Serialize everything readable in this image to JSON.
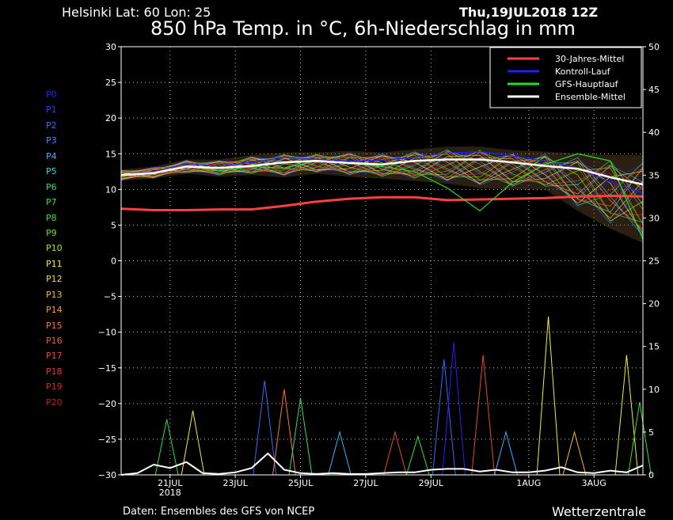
{
  "header": {
    "location": "Helsinki   Lat: 60  Lon: 25",
    "date": "Thu,19JUL2018 12Z",
    "title": "850 hPa Temp. in °C, 6h-Niederschlag in mm"
  },
  "footer": {
    "source": "Daten: Ensembles des GFS von NCEP",
    "brand": "Wetterzentrale"
  },
  "members": [
    {
      "name": "P0",
      "color": "#2020ff"
    },
    {
      "name": "P1",
      "color": "#2a3dff"
    },
    {
      "name": "P2",
      "color": "#2e6cff"
    },
    {
      "name": "P3",
      "color": "#2e8fff"
    },
    {
      "name": "P4",
      "color": "#35b3ff"
    },
    {
      "name": "P5",
      "color": "#3ad7e0"
    },
    {
      "name": "P6",
      "color": "#30d890"
    },
    {
      "name": "P7",
      "color": "#28e060"
    },
    {
      "name": "P8",
      "color": "#30e030"
    },
    {
      "name": "P9",
      "color": "#60e020"
    },
    {
      "name": "P10",
      "color": "#a0e820"
    },
    {
      "name": "P11",
      "color": "#f0f030"
    },
    {
      "name": "P12",
      "color": "#f8d830"
    },
    {
      "name": "P13",
      "color": "#f8b830"
    },
    {
      "name": "P14",
      "color": "#f89830"
    },
    {
      "name": "P15",
      "color": "#f87830"
    },
    {
      "name": "P16",
      "color": "#f06030"
    },
    {
      "name": "P17",
      "color": "#e84830"
    },
    {
      "name": "P18",
      "color": "#e03828"
    },
    {
      "name": "P19",
      "color": "#d82820"
    },
    {
      "name": "P20",
      "color": "#c81818"
    }
  ],
  "chart_data": {
    "type": "line",
    "x_ticks": [
      {
        "label": "21JUL",
        "sub": "2018",
        "x": 1.5
      },
      {
        "label": "23JUL",
        "sub": "",
        "x": 3.5
      },
      {
        "label": "25JUL",
        "sub": "",
        "x": 5.5
      },
      {
        "label": "27JUL",
        "sub": "",
        "x": 7.5
      },
      {
        "label": "29JUL",
        "sub": "",
        "x": 9.5
      },
      {
        "label": "1AUG",
        "sub": "",
        "x": 12.5
      },
      {
        "label": "3AUG",
        "sub": "",
        "x": 14.5
      }
    ],
    "xlim": [
      0,
      16
    ],
    "ylim_left": [
      -30,
      30
    ],
    "ylim_right": [
      0,
      50
    ],
    "y_ticks_left": [
      30,
      25,
      20,
      15,
      10,
      5,
      0,
      -5,
      -10,
      -15,
      -20,
      -25,
      -30
    ],
    "y_ticks_right": [
      50,
      45,
      40,
      35,
      30,
      25,
      20,
      15,
      10,
      5,
      0
    ],
    "grid": true,
    "legend_position": "top-right",
    "legend": [
      {
        "name": "30-Jahres-Mittel",
        "color": "#ff4040"
      },
      {
        "name": "Kontroll-Lauf",
        "color": "#2020ff"
      },
      {
        "name": "GFS-Hauptlauf",
        "color": "#20e020"
      },
      {
        "name": "Ensemble-Mittel",
        "color": "#ffffff"
      }
    ],
    "climate_mean": {
      "x": [
        0,
        1,
        2,
        3,
        4,
        5,
        6,
        7,
        8,
        9,
        10,
        11,
        12,
        13,
        14,
        15,
        16
      ],
      "y": [
        7.3,
        7.1,
        7.1,
        7.2,
        7.2,
        7.7,
        8.3,
        8.7,
        8.9,
        8.9,
        8.5,
        8.6,
        8.7,
        8.8,
        9.0,
        9.1,
        9.0
      ]
    },
    "ensemble_mean": {
      "x": [
        0,
        1,
        2,
        3,
        4,
        5,
        6,
        7,
        8,
        9,
        10,
        11,
        12,
        13,
        14,
        15,
        16
      ],
      "y": [
        12.0,
        12.3,
        13.2,
        13.0,
        13.3,
        13.8,
        14.0,
        13.7,
        13.5,
        14.0,
        14.2,
        14.2,
        13.8,
        13.3,
        12.9,
        11.7,
        10.7
      ]
    },
    "control_run": {
      "x": [
        0,
        1,
        2,
        3,
        4,
        5,
        6,
        7,
        8,
        9,
        10,
        11,
        12,
        13,
        14,
        15,
        16
      ],
      "y": [
        12.0,
        12.5,
        13.6,
        13.3,
        13.8,
        14.5,
        14.2,
        14.0,
        14.1,
        14.5,
        15.1,
        15.3,
        14.7,
        14.0,
        13.0,
        11.0,
        9.5
      ]
    },
    "gfs_main": {
      "x": [
        0,
        1,
        2,
        3,
        4,
        5,
        6,
        7,
        8,
        9,
        10,
        11,
        12,
        13,
        14,
        15,
        16
      ],
      "y": [
        12.0,
        12.2,
        13.3,
        12.6,
        13.2,
        13.0,
        14.0,
        13.7,
        13.2,
        12.5,
        10.2,
        7.0,
        11.0,
        13.5,
        15.0,
        14.0,
        3.0
      ]
    },
    "ensemble_band": {
      "x": [
        0,
        1,
        2,
        3,
        4,
        5,
        6,
        7,
        8,
        9,
        10,
        11,
        12,
        13,
        14,
        15,
        16
      ],
      "min": [
        11.2,
        11.5,
        12.2,
        11.8,
        12.0,
        11.7,
        12.2,
        11.8,
        11.5,
        11.2,
        10.8,
        10.2,
        10.0,
        10.0,
        7.0,
        4.5,
        2.5
      ],
      "max": [
        12.8,
        13.2,
        14.2,
        14.2,
        14.8,
        15.2,
        15.2,
        15.4,
        15.2,
        15.6,
        16.0,
        16.0,
        15.5,
        15.3,
        15.0,
        14.8,
        14.8
      ]
    },
    "precip_mean": {
      "x": [
        0,
        0.5,
        1,
        1.5,
        2,
        2.5,
        3,
        3.5,
        4,
        4.5,
        5,
        5.5,
        6,
        6.5,
        7,
        7.5,
        8,
        8.5,
        9,
        9.5,
        10,
        10.5,
        11,
        11.5,
        12,
        12.5,
        13,
        13.5,
        14,
        14.5,
        15,
        15.5,
        16
      ],
      "y": [
        0,
        0.2,
        1.2,
        0.8,
        1.5,
        0.2,
        0.1,
        0.3,
        0.8,
        2.5,
        0.6,
        0.2,
        0.1,
        0.2,
        0.1,
        0.1,
        0.2,
        0.3,
        0.3,
        0.6,
        0.7,
        0.7,
        0.4,
        0.6,
        0.3,
        0.3,
        0.5,
        0.9,
        0.3,
        0.2,
        0.5,
        0.3,
        1.1
      ]
    },
    "precip_peaks": [
      {
        "x": 1.4,
        "y": 6.5,
        "color": "#30e030"
      },
      {
        "x": 2.2,
        "y": 7.5,
        "color": "#f0f030"
      },
      {
        "x": 4.4,
        "y": 11.0,
        "color": "#2e6cff"
      },
      {
        "x": 5.0,
        "y": 10.0,
        "color": "#f87830"
      },
      {
        "x": 5.5,
        "y": 9.0,
        "color": "#28e060"
      },
      {
        "x": 6.7,
        "y": 5.0,
        "color": "#35b3ff"
      },
      {
        "x": 8.4,
        "y": 5.0,
        "color": "#e84830"
      },
      {
        "x": 9.1,
        "y": 4.5,
        "color": "#30e030"
      },
      {
        "x": 9.9,
        "y": 13.5,
        "color": "#2e6cff"
      },
      {
        "x": 10.2,
        "y": 15.5,
        "color": "#2020ff"
      },
      {
        "x": 11.1,
        "y": 14.0,
        "color": "#e84830"
      },
      {
        "x": 11.8,
        "y": 5.0,
        "color": "#35b3ff"
      },
      {
        "x": 13.1,
        "y": 18.5,
        "color": "#f0f030"
      },
      {
        "x": 13.9,
        "y": 5.0,
        "color": "#f8b830"
      },
      {
        "x": 15.5,
        "y": 14.0,
        "color": "#f0f030"
      },
      {
        "x": 15.9,
        "y": 8.5,
        "color": "#30e030"
      }
    ]
  }
}
